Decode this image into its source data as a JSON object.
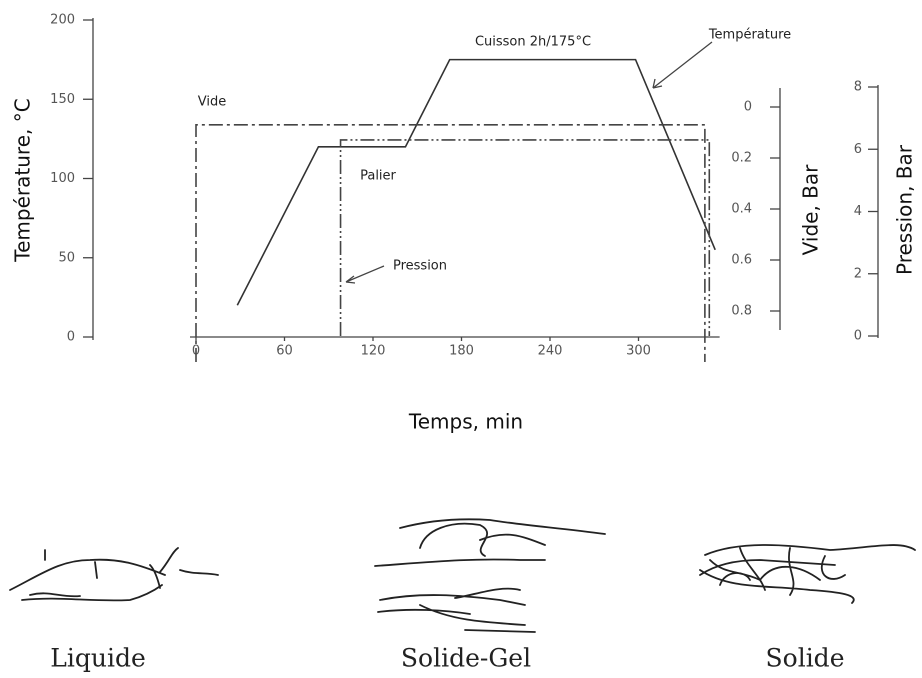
{
  "chart_data": {
    "type": "line",
    "xlabel": "Temps, min",
    "xlim": [
      0,
      355
    ],
    "xticks": [
      0,
      60,
      120,
      180,
      240,
      300
    ],
    "ylabel": "Température, °C",
    "ylim": [
      0,
      200
    ],
    "yticks": [
      0,
      50,
      100,
      150,
      200
    ],
    "y2label": "Vide, Bar",
    "y2lim": [
      0,
      1
    ],
    "y2ticks": [
      0,
      0.2,
      0.4,
      0.6,
      0.8
    ],
    "y2_inverted": true,
    "y3label": "Pression, Bar",
    "y3lim": [
      0,
      8
    ],
    "y3ticks": [
      0,
      2,
      4,
      6,
      8
    ],
    "annotations": [
      "Cuisson 2h/175°C",
      "Palier"
    ],
    "series": [
      {
        "name": "Température",
        "axis": "y",
        "color": "#333333",
        "style": "solid",
        "x": [
          28,
          83,
          142,
          172,
          298,
          352
        ],
        "values": [
          20,
          120,
          120,
          175,
          175,
          55
        ]
      },
      {
        "name": "Vide",
        "axis": "y2",
        "color": "#444444",
        "style": "dash-dot",
        "x": [
          0,
          0,
          345,
          345
        ],
        "values": [
          1,
          0.07,
          0.07,
          1
        ]
      },
      {
        "name": "Pression",
        "axis": "y3",
        "color": "#444444",
        "style": "dash-dot-dot",
        "x": [
          98,
          98,
          348,
          348
        ],
        "values": [
          0,
          6.3,
          6.3,
          0
        ]
      }
    ]
  },
  "states": [
    "Liquide",
    "Solide-Gel",
    "Solide"
  ]
}
